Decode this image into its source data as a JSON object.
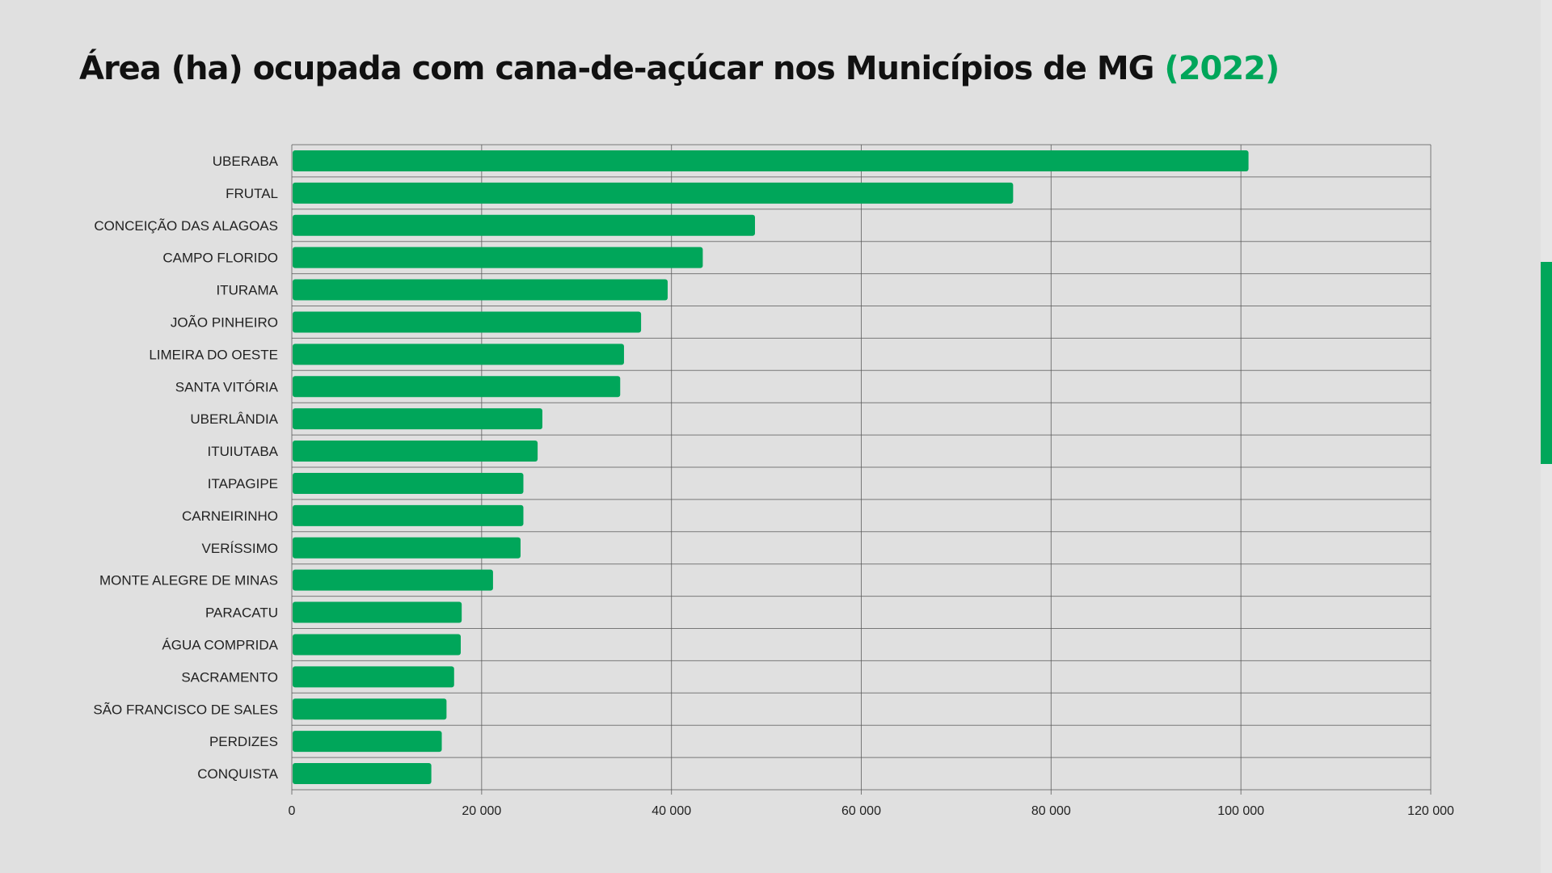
{
  "title": {
    "main": "Área (ha) ocupada com cana-de-açúcar nos Municípios de MG",
    "year": "(2022)"
  },
  "colors": {
    "accent": "#00a65a",
    "bar": "#00a65a",
    "background": "#e0e0e0",
    "grid": "#555555"
  },
  "chart_data": {
    "type": "bar",
    "orientation": "horizontal",
    "categories": [
      "UBERABA",
      "FRUTAL",
      "CONCEIÇÃO DAS ALAGOAS",
      "CAMPO FLORIDO",
      "ITURAMA",
      "JOÃO PINHEIRO",
      "LIMEIRA DO OESTE",
      "SANTA VITÓRIA",
      "UBERLÂNDIA",
      "ITUIUTABA",
      "ITAPAGIPE",
      "CARNEIRINHO",
      "VERÍSSIMO",
      "MONTE ALEGRE DE MINAS",
      "PARACATU",
      "ÁGUA COMPRIDA",
      "SACRAMENTO",
      "SÃO FRANCISCO DE SALES",
      "PERDIZES",
      "CONQUISTA"
    ],
    "values": [
      100800,
      76000,
      48800,
      43300,
      39600,
      36800,
      35000,
      34600,
      26400,
      25900,
      24400,
      24400,
      24100,
      21200,
      17900,
      17800,
      17100,
      16300,
      15800,
      14700
    ],
    "xlim": [
      0,
      120000
    ],
    "xticks": [
      0,
      20000,
      40000,
      60000,
      80000,
      100000,
      120000
    ],
    "xtick_labels": [
      "0",
      "20 000",
      "40 000",
      "60 000",
      "80 000",
      "100 000",
      "120 000"
    ],
    "grid": true
  }
}
